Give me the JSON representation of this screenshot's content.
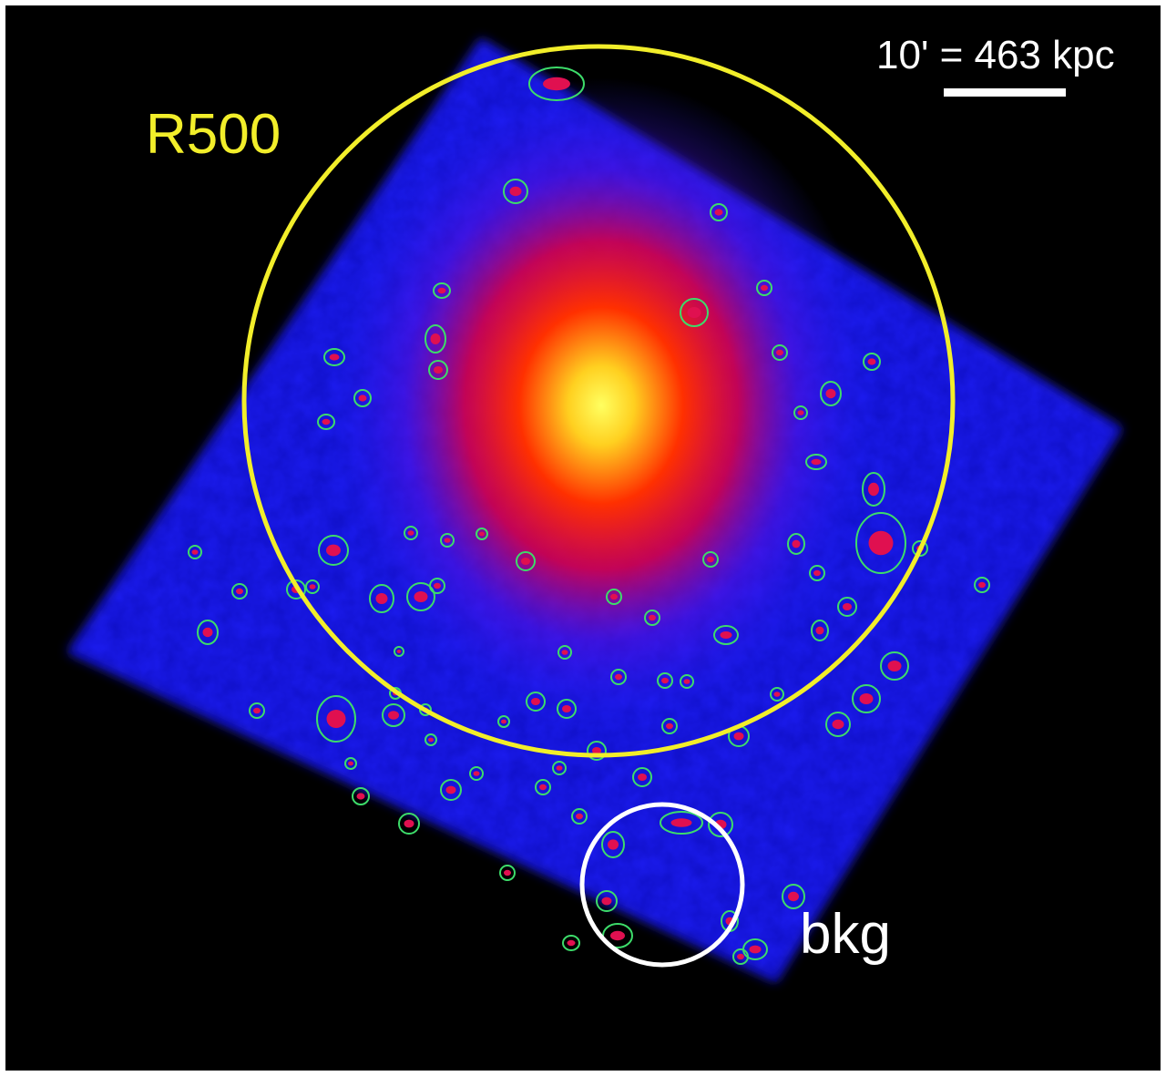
{
  "labels": {
    "r500": "R500",
    "background_region": "bkg",
    "scale": "10' = 463 kpc"
  },
  "colors": {
    "r500_circle": "#f2ee2a",
    "bkg_circle": "#ffffff",
    "source_contours": "#3ddc6a",
    "background": "#000000",
    "field": "#1a1aff",
    "core": "#ffff40"
  }
}
